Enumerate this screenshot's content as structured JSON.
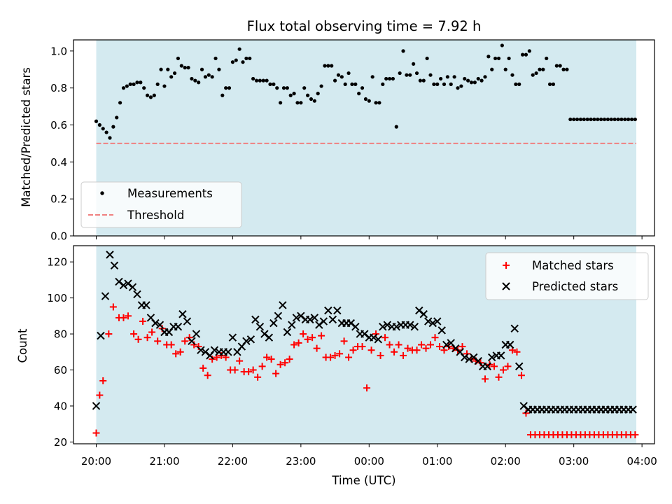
{
  "chart_data": [
    {
      "type": "scatter",
      "title": "Flux total observing time = 7.92 h",
      "xlabel": "",
      "ylabel": "Matched/Predicted stars",
      "xlim": [
        "19:40",
        "04:11"
      ],
      "ylim": [
        0,
        1.06
      ],
      "yticks": [
        "0.0",
        "0.2",
        "0.4",
        "0.6",
        "0.8",
        "1.0"
      ],
      "xticks": [
        "20:00",
        "21:00",
        "22:00",
        "23:00",
        "00:00",
        "01:00",
        "02:00",
        "03:00",
        "04:00"
      ],
      "observing_window": [
        "20:00",
        "03:55"
      ],
      "observing_window_color": "#d4eaf0",
      "legend_position": "lower-left",
      "series": [
        {
          "name": "Measurements",
          "marker": "dot",
          "color": "#000000",
          "x": [
            "20:00",
            "20:03",
            "20:06",
            "20:09",
            "20:12",
            "20:15",
            "20:18",
            "20:21",
            "20:24",
            "20:27",
            "20:30",
            "20:33",
            "20:36",
            "20:39",
            "20:42",
            "20:45",
            "20:48",
            "20:51",
            "20:54",
            "20:57",
            "21:00",
            "21:03",
            "21:06",
            "21:09",
            "21:12",
            "21:15",
            "21:18",
            "21:21",
            "21:24",
            "21:27",
            "21:30",
            "21:33",
            "21:36",
            "21:39",
            "21:42",
            "21:45",
            "21:48",
            "21:51",
            "21:54",
            "21:57",
            "22:00",
            "22:03",
            "22:06",
            "22:09",
            "22:12",
            "22:15",
            "22:18",
            "22:21",
            "22:24",
            "22:27",
            "22:30",
            "22:33",
            "22:36",
            "22:39",
            "22:42",
            "22:45",
            "22:48",
            "22:51",
            "22:54",
            "22:57",
            "23:00",
            "23:03",
            "23:06",
            "23:09",
            "23:12",
            "23:15",
            "23:18",
            "23:21",
            "23:24",
            "23:27",
            "23:30",
            "23:33",
            "23:36",
            "23:39",
            "23:42",
            "23:45",
            "23:48",
            "23:51",
            "23:54",
            "23:57",
            "00:00",
            "00:03",
            "00:06",
            "00:09",
            "00:12",
            "00:15",
            "00:18",
            "00:21",
            "00:24",
            "00:27",
            "00:30",
            "00:33",
            "00:36",
            "00:39",
            "00:42",
            "00:45",
            "00:48",
            "00:51",
            "00:54",
            "00:57",
            "01:00",
            "01:03",
            "01:06",
            "01:09",
            "01:12",
            "01:15",
            "01:18",
            "01:21",
            "01:24",
            "01:27",
            "01:30",
            "01:33",
            "01:36",
            "01:39",
            "01:42",
            "01:45",
            "01:48",
            "01:51",
            "01:54",
            "01:57",
            "02:00",
            "02:03",
            "02:06",
            "02:09",
            "02:12",
            "02:15",
            "02:18",
            "02:21",
            "02:24",
            "02:27",
            "02:30",
            "02:33",
            "02:36",
            "02:39",
            "02:42",
            "02:45",
            "02:48",
            "02:51",
            "02:54",
            "02:57",
            "03:00",
            "03:03",
            "03:06",
            "03:09",
            "03:12",
            "03:15",
            "03:18",
            "03:21",
            "03:24",
            "03:27",
            "03:30",
            "03:33",
            "03:36",
            "03:39",
            "03:42",
            "03:45",
            "03:48",
            "03:51",
            "03:54"
          ],
          "y": [
            0.62,
            0.6,
            0.58,
            0.56,
            0.53,
            0.59,
            0.64,
            0.72,
            0.8,
            0.81,
            0.82,
            0.82,
            0.83,
            0.83,
            0.8,
            0.76,
            0.75,
            0.76,
            0.82,
            0.9,
            0.81,
            0.9,
            0.86,
            0.88,
            0.96,
            0.92,
            0.91,
            0.91,
            0.85,
            0.84,
            0.83,
            0.9,
            0.86,
            0.87,
            0.86,
            0.96,
            0.9,
            0.76,
            0.8,
            0.8,
            0.94,
            0.95,
            1.01,
            0.94,
            0.96,
            0.96,
            0.85,
            0.84,
            0.84,
            0.84,
            0.84,
            0.82,
            0.82,
            0.8,
            0.72,
            0.8,
            0.8,
            0.76,
            0.77,
            0.72,
            0.72,
            0.8,
            0.76,
            0.74,
            0.73,
            0.77,
            0.81,
            0.92,
            0.92,
            0.92,
            0.84,
            0.87,
            0.86,
            0.82,
            0.88,
            0.82,
            0.82,
            0.77,
            0.8,
            0.74,
            0.73,
            0.86,
            0.72,
            0.72,
            0.82,
            0.85,
            0.85,
            0.85,
            0.59,
            0.88,
            1.0,
            0.87,
            0.87,
            0.93,
            0.88,
            0.84,
            0.84,
            0.96,
            0.87,
            0.82,
            0.82,
            0.85,
            0.82,
            0.86,
            0.82,
            0.86,
            0.8,
            0.81,
            0.85,
            0.84,
            0.83,
            0.83,
            0.85,
            0.84,
            0.86,
            0.97,
            0.9,
            0.96,
            0.96,
            1.03,
            0.9,
            0.96,
            0.87,
            0.82,
            0.82,
            0.98,
            0.98,
            1.0,
            0.87,
            0.88,
            0.9,
            0.9,
            0.96,
            0.82,
            0.82,
            0.92,
            0.92,
            0.9,
            0.9,
            0.63,
            0.63,
            0.63,
            0.63,
            0.63,
            0.63,
            0.63,
            0.63,
            0.63,
            0.63,
            0.63,
            0.63,
            0.63,
            0.63,
            0.63,
            0.63,
            0.63,
            0.63,
            0.63,
            0.63
          ]
        },
        {
          "name": "Threshold",
          "marker": "dashed-line",
          "color": "#f08080",
          "y": 0.5
        }
      ]
    },
    {
      "type": "scatter",
      "title": "",
      "xlabel": "Time (UTC)",
      "ylabel": "Count",
      "xlim": [
        "19:40",
        "04:11"
      ],
      "ylim": [
        19,
        129
      ],
      "yticks": [
        "20",
        "40",
        "60",
        "80",
        "100",
        "120"
      ],
      "xticks": [
        "20:00",
        "21:00",
        "22:00",
        "23:00",
        "00:00",
        "01:00",
        "02:00",
        "03:00",
        "04:00"
      ],
      "observing_window": [
        "20:00",
        "03:55"
      ],
      "observing_window_color": "#d4eaf0",
      "legend_position": "top-right",
      "series": [
        {
          "name": "Matched stars",
          "marker": "plus",
          "color": "#ff0000",
          "x": [
            "20:00",
            "20:03",
            "20:06",
            "20:11",
            "20:15",
            "20:20",
            "20:24",
            "20:28",
            "20:33",
            "20:37",
            "20:41",
            "20:45",
            "20:49",
            "20:54",
            "20:58",
            "21:02",
            "21:06",
            "21:10",
            "21:14",
            "21:18",
            "21:22",
            "21:26",
            "21:30",
            "21:34",
            "21:38",
            "21:42",
            "21:46",
            "21:50",
            "21:54",
            "21:58",
            "22:02",
            "22:06",
            "22:10",
            "22:14",
            "22:18",
            "22:22",
            "22:26",
            "22:30",
            "22:34",
            "22:38",
            "22:42",
            "22:46",
            "22:50",
            "22:54",
            "22:58",
            "23:02",
            "23:06",
            "23:10",
            "23:14",
            "23:18",
            "23:22",
            "23:26",
            "23:30",
            "23:34",
            "23:38",
            "23:42",
            "23:46",
            "23:50",
            "23:54",
            "23:58",
            "00:02",
            "00:06",
            "00:10",
            "00:14",
            "00:18",
            "00:22",
            "00:26",
            "00:30",
            "00:34",
            "00:38",
            "00:42",
            "00:46",
            "00:50",
            "00:54",
            "00:58",
            "01:02",
            "01:06",
            "01:10",
            "01:14",
            "01:18",
            "01:22",
            "01:26",
            "01:30",
            "01:34",
            "01:38",
            "01:42",
            "01:46",
            "01:50",
            "01:54",
            "01:58",
            "02:02",
            "02:06",
            "02:10",
            "02:14",
            "02:18",
            "02:22",
            "02:26",
            "02:30",
            "02:34",
            "02:38",
            "02:42",
            "02:46",
            "02:50",
            "02:54",
            "02:58",
            "03:02",
            "03:06",
            "03:10",
            "03:14",
            "03:18",
            "03:22",
            "03:26",
            "03:30",
            "03:34",
            "03:38",
            "03:42",
            "03:46",
            "03:50",
            "03:54"
          ],
          "y": [
            25,
            46,
            54,
            80,
            95,
            89,
            89,
            90,
            80,
            77,
            87,
            78,
            81,
            76,
            83,
            74,
            74,
            69,
            70,
            76,
            78,
            74,
            73,
            61,
            57,
            66,
            67,
            68,
            67,
            60,
            60,
            65,
            59,
            59,
            60,
            56,
            62,
            67,
            66,
            58,
            63,
            64,
            66,
            74,
            75,
            80,
            77,
            78,
            72,
            79,
            67,
            67,
            68,
            69,
            76,
            67,
            71,
            73,
            73,
            50,
            71,
            80,
            68,
            78,
            74,
            70,
            74,
            68,
            72,
            71,
            71,
            74,
            72,
            74,
            78,
            73,
            71,
            73,
            72,
            71,
            73,
            69,
            66,
            65,
            64,
            55,
            63,
            62,
            56,
            60,
            62,
            71,
            70,
            57,
            36,
            24,
            24,
            24,
            24,
            24,
            24,
            24,
            24,
            24,
            24,
            24,
            24,
            24,
            24,
            24,
            24,
            24,
            24,
            24,
            24,
            24,
            24,
            24,
            24
          ]
        },
        {
          "name": "Predicted stars",
          "marker": "x",
          "color": "#000000",
          "x": [
            "20:00",
            "20:04",
            "20:08",
            "20:12",
            "20:16",
            "20:20",
            "20:24",
            "20:28",
            "20:32",
            "20:36",
            "20:40",
            "20:44",
            "20:48",
            "20:52",
            "20:56",
            "21:00",
            "21:04",
            "21:08",
            "21:12",
            "21:16",
            "21:20",
            "21:24",
            "21:28",
            "21:32",
            "21:36",
            "21:40",
            "21:44",
            "21:48",
            "21:52",
            "21:56",
            "22:00",
            "22:04",
            "22:08",
            "22:12",
            "22:16",
            "22:20",
            "22:24",
            "22:28",
            "22:32",
            "22:36",
            "22:40",
            "22:44",
            "22:48",
            "22:52",
            "22:56",
            "23:00",
            "23:04",
            "23:08",
            "23:12",
            "23:16",
            "23:20",
            "23:24",
            "23:28",
            "23:32",
            "23:36",
            "23:40",
            "23:44",
            "23:48",
            "23:52",
            "23:56",
            "00:00",
            "00:04",
            "00:08",
            "00:12",
            "00:16",
            "00:20",
            "00:24",
            "00:28",
            "00:32",
            "00:36",
            "00:40",
            "00:44",
            "00:48",
            "00:52",
            "00:56",
            "01:00",
            "01:04",
            "01:08",
            "01:12",
            "01:16",
            "01:20",
            "01:24",
            "01:28",
            "01:32",
            "01:36",
            "01:40",
            "01:44",
            "01:48",
            "01:52",
            "01:56",
            "02:00",
            "02:04",
            "02:08",
            "02:12",
            "02:16",
            "02:20",
            "02:24",
            "02:28",
            "02:32",
            "02:36",
            "02:40",
            "02:44",
            "02:48",
            "02:52",
            "02:56",
            "03:00",
            "03:04",
            "03:08",
            "03:12",
            "03:16",
            "03:20",
            "03:24",
            "03:28",
            "03:32",
            "03:36",
            "03:40",
            "03:44",
            "03:48",
            "03:52"
          ],
          "y": [
            40,
            79,
            101,
            124,
            118,
            109,
            107,
            108,
            106,
            102,
            96,
            96,
            89,
            86,
            85,
            81,
            81,
            84,
            84,
            91,
            87,
            76,
            80,
            71,
            70,
            68,
            71,
            70,
            70,
            70,
            78,
            70,
            73,
            76,
            77,
            88,
            84,
            80,
            78,
            86,
            90,
            96,
            81,
            85,
            89,
            90,
            88,
            88,
            89,
            85,
            87,
            93,
            88,
            93,
            86,
            86,
            86,
            84,
            80,
            80,
            78,
            78,
            77,
            84,
            85,
            84,
            84,
            85,
            85,
            85,
            84,
            93,
            91,
            87,
            86,
            87,
            82,
            74,
            75,
            72,
            70,
            67,
            66,
            67,
            65,
            62,
            62,
            67,
            68,
            68,
            74,
            74,
            83,
            62,
            40,
            38,
            38,
            38,
            38,
            38,
            38,
            38,
            38,
            38,
            38,
            38,
            38,
            38,
            38,
            38,
            38,
            38,
            38,
            38,
            38,
            38,
            38,
            38,
            38
          ]
        }
      ]
    }
  ]
}
